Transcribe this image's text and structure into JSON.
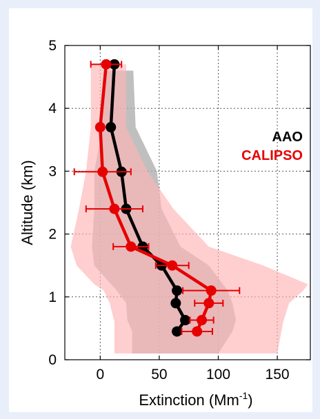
{
  "chart_data": {
    "type": "line",
    "xlabel": "Extinction (Mm",
    "xlabel_superscript": "-1",
    "xlabel_close": ")",
    "ylabel": "Altitude (km)",
    "xlim": [
      -30,
      178
    ],
    "ylim": [
      0,
      5
    ],
    "xticks": [
      0,
      50,
      100,
      150
    ],
    "yticks": [
      0,
      1,
      2,
      3,
      4,
      5
    ],
    "grid": true,
    "legend_position": "right",
    "series": [
      {
        "name": "AAO",
        "color": "#000000",
        "band_color": "#a9a9a9",
        "points": [
          {
            "x": 65,
            "y": 0.45
          },
          {
            "x": 72,
            "y": 0.63
          },
          {
            "x": 64,
            "y": 0.9
          },
          {
            "x": 65,
            "y": 1.1
          },
          {
            "x": 52,
            "y": 1.5
          },
          {
            "x": 36,
            "y": 1.8
          },
          {
            "x": 22,
            "y": 2.4
          },
          {
            "x": 18,
            "y": 2.99
          },
          {
            "x": 9,
            "y": 3.7
          },
          {
            "x": 12,
            "y": 4.7
          }
        ],
        "band": {
          "y": [
            0.1,
            0.45,
            0.63,
            0.9,
            1.1,
            1.5,
            1.8,
            2.4,
            3.0,
            3.7,
            4.6
          ],
          "low": [
            27,
            27,
            23,
            22,
            14,
            -5,
            -7,
            -5,
            -5,
            2,
            5
          ],
          "high": [
            100,
            112,
            115,
            112,
            108,
            92,
            68,
            52,
            48,
            30,
            28
          ]
        }
      },
      {
        "name": "CALIPSO",
        "color": "#e60000",
        "band_color": "#ffb3b6",
        "points": [
          {
            "x": 82,
            "y": 0.45,
            "err": 13
          },
          {
            "x": 86,
            "y": 0.63,
            "err": 10
          },
          {
            "x": 92,
            "y": 0.9,
            "err": 12
          },
          {
            "x": 94,
            "y": 1.1,
            "err": 24
          },
          {
            "x": 61,
            "y": 1.5,
            "err": 14
          },
          {
            "x": 26,
            "y": 1.8,
            "err": 15
          },
          {
            "x": 12,
            "y": 2.4,
            "err": 24
          },
          {
            "x": 2,
            "y": 2.99,
            "err": 24
          },
          {
            "x": 0,
            "y": 3.7,
            "err": 0
          },
          {
            "x": 5,
            "y": 4.7,
            "err": 13
          }
        ],
        "band": {
          "y": [
            0.1,
            0.6,
            0.9,
            1.1,
            1.2,
            1.5,
            1.8,
            2.4,
            3.0,
            3.7,
            4.7
          ],
          "low": [
            12,
            12,
            8,
            3,
            -5,
            -20,
            -25,
            -18,
            -12,
            -8,
            -8
          ],
          "high": [
            150,
            155,
            160,
            172,
            176,
            138,
            92,
            62,
            40,
            22,
            22
          ]
        }
      }
    ]
  }
}
